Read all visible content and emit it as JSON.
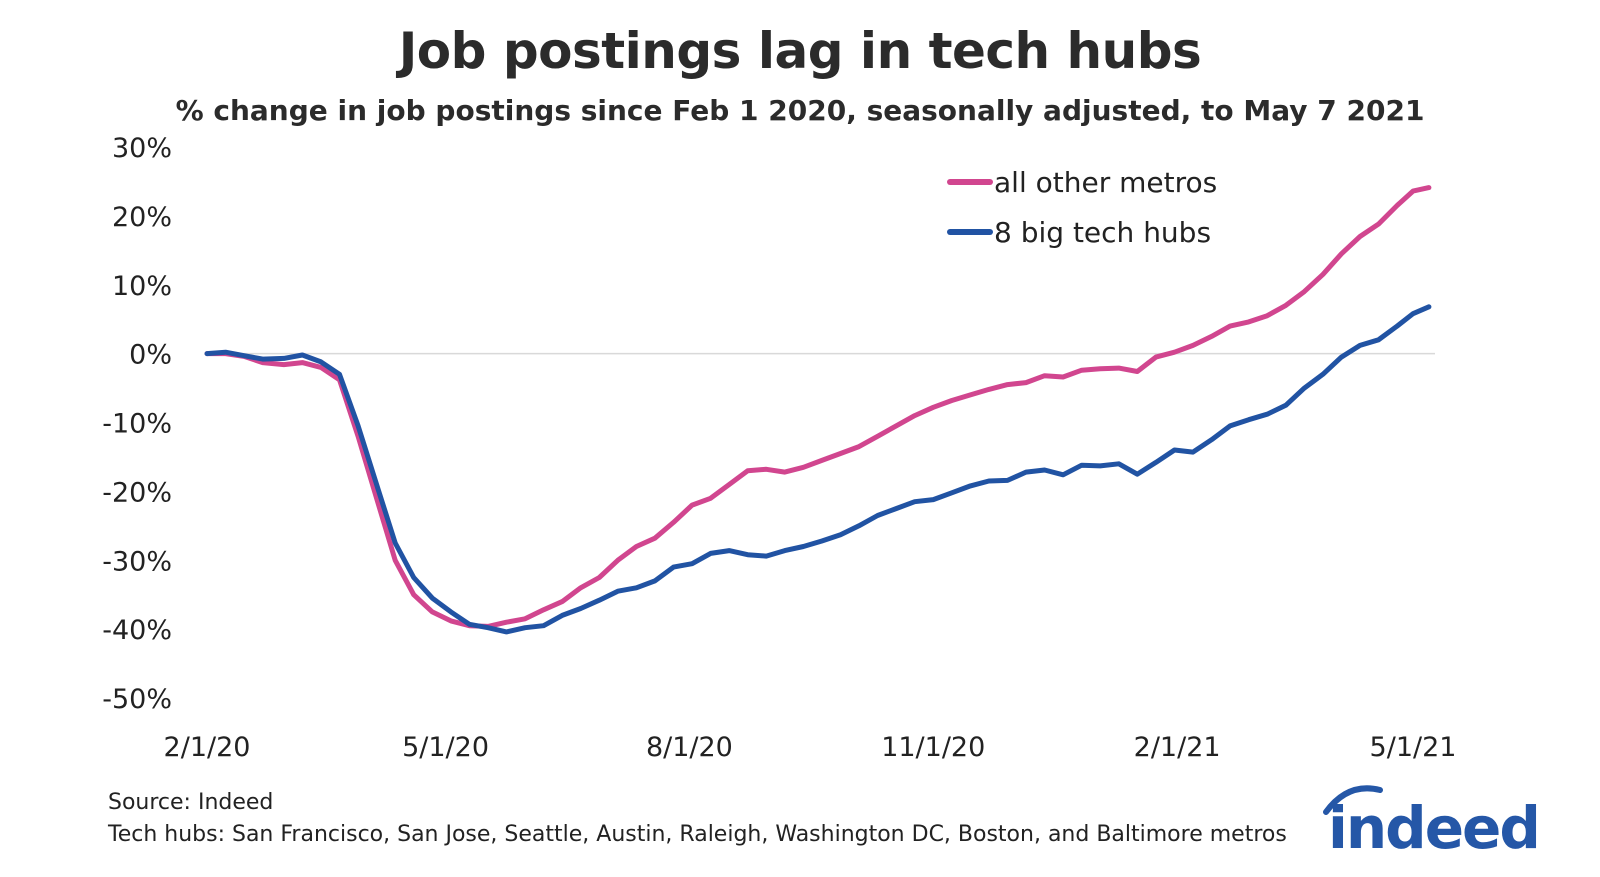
{
  "chart_data": {
    "type": "line",
    "title": "Job postings lag in tech hubs",
    "subtitle": "% change in job postings since Feb 1 2020, seasonally adjusted, to May 7 2021",
    "xlabel": "",
    "ylabel": "",
    "ylim": [
      -50,
      30
    ],
    "yticks": [
      30,
      20,
      10,
      0,
      -10,
      -20,
      -30,
      -40,
      -50
    ],
    "ytick_labels": [
      "30%",
      "20%",
      "10%",
      "0%",
      "-10%",
      "-20%",
      "-30%",
      "-40%",
      "-50%"
    ],
    "xlim": [
      "2020-02-01",
      "2021-05-07"
    ],
    "xticks": [
      "2020-02-01",
      "2020-05-01",
      "2020-08-01",
      "2020-11-01",
      "2021-02-01",
      "2021-05-01"
    ],
    "xtick_labels": [
      "2/1/20",
      "5/1/20",
      "8/1/20",
      "11/1/20",
      "2/1/21",
      "5/1/21"
    ],
    "grid": false,
    "zero_line": true,
    "legend_position": "top-right",
    "series": [
      {
        "name": "all other metros",
        "color": "#d1468f",
        "points": [
          [
            "2020-02-01",
            0.0
          ],
          [
            "2020-02-08",
            0.0
          ],
          [
            "2020-02-15",
            -0.4
          ],
          [
            "2020-02-22",
            -1.3
          ],
          [
            "2020-03-01",
            -1.6
          ],
          [
            "2020-03-08",
            -1.3
          ],
          [
            "2020-03-15",
            -2.0
          ],
          [
            "2020-03-22",
            -3.8
          ],
          [
            "2020-03-29",
            -12.0
          ],
          [
            "2020-04-05",
            -21.0
          ],
          [
            "2020-04-12",
            -30.0
          ],
          [
            "2020-04-19",
            -35.0
          ],
          [
            "2020-04-26",
            -37.5
          ],
          [
            "2020-05-03",
            -38.8
          ],
          [
            "2020-05-10",
            -39.5
          ],
          [
            "2020-05-17",
            -39.6
          ],
          [
            "2020-05-24",
            -39.0
          ],
          [
            "2020-05-31",
            -38.5
          ],
          [
            "2020-06-07",
            -37.2
          ],
          [
            "2020-06-14",
            -36.0
          ],
          [
            "2020-06-21",
            -34.0
          ],
          [
            "2020-06-28",
            -32.5
          ],
          [
            "2020-07-05",
            -30.0
          ],
          [
            "2020-07-12",
            -28.0
          ],
          [
            "2020-07-19",
            -26.8
          ],
          [
            "2020-07-26",
            -24.5
          ],
          [
            "2020-08-02",
            -22.0
          ],
          [
            "2020-08-09",
            -21.0
          ],
          [
            "2020-08-16",
            -19.0
          ],
          [
            "2020-08-23",
            -17.0
          ],
          [
            "2020-08-30",
            -16.8
          ],
          [
            "2020-09-06",
            -17.2
          ],
          [
            "2020-09-13",
            -16.5
          ],
          [
            "2020-09-20",
            -15.5
          ],
          [
            "2020-09-27",
            -14.5
          ],
          [
            "2020-10-04",
            -13.5
          ],
          [
            "2020-10-11",
            -12.0
          ],
          [
            "2020-10-18",
            -10.5
          ],
          [
            "2020-10-25",
            -9.0
          ],
          [
            "2020-11-01",
            -7.8
          ],
          [
            "2020-11-08",
            -6.8
          ],
          [
            "2020-11-15",
            -6.0
          ],
          [
            "2020-11-22",
            -5.2
          ],
          [
            "2020-11-29",
            -4.5
          ],
          [
            "2020-12-06",
            -4.2
          ],
          [
            "2020-12-13",
            -3.2
          ],
          [
            "2020-12-20",
            -3.4
          ],
          [
            "2020-12-27",
            -2.4
          ],
          [
            "2021-01-03",
            -2.2
          ],
          [
            "2021-01-10",
            -2.1
          ],
          [
            "2021-01-17",
            -2.6
          ],
          [
            "2021-01-24",
            -0.5
          ],
          [
            "2021-01-31",
            0.2
          ],
          [
            "2021-02-07",
            1.2
          ],
          [
            "2021-02-14",
            2.5
          ],
          [
            "2021-02-21",
            4.0
          ],
          [
            "2021-02-28",
            4.6
          ],
          [
            "2021-03-07",
            5.5
          ],
          [
            "2021-03-14",
            7.0
          ],
          [
            "2021-03-21",
            9.0
          ],
          [
            "2021-03-28",
            11.5
          ],
          [
            "2021-04-04",
            14.5
          ],
          [
            "2021-04-11",
            17.0
          ],
          [
            "2021-04-18",
            18.8
          ],
          [
            "2021-04-25",
            21.5
          ],
          [
            "2021-05-01",
            23.6
          ],
          [
            "2021-05-07",
            24.1
          ]
        ]
      },
      {
        "name": "8 big tech hubs",
        "color": "#2153a3",
        "points": [
          [
            "2020-02-01",
            0.0
          ],
          [
            "2020-02-08",
            0.2
          ],
          [
            "2020-02-15",
            -0.3
          ],
          [
            "2020-02-22",
            -0.8
          ],
          [
            "2020-03-01",
            -0.7
          ],
          [
            "2020-03-08",
            -0.2
          ],
          [
            "2020-03-15",
            -1.2
          ],
          [
            "2020-03-22",
            -3.0
          ],
          [
            "2020-03-29",
            -10.5
          ],
          [
            "2020-04-05",
            -19.0
          ],
          [
            "2020-04-12",
            -27.5
          ],
          [
            "2020-04-19",
            -32.5
          ],
          [
            "2020-04-26",
            -35.5
          ],
          [
            "2020-05-03",
            -37.5
          ],
          [
            "2020-05-10",
            -39.3
          ],
          [
            "2020-05-17",
            -39.8
          ],
          [
            "2020-05-24",
            -40.4
          ],
          [
            "2020-05-31",
            -39.8
          ],
          [
            "2020-06-07",
            -39.5
          ],
          [
            "2020-06-14",
            -38.0
          ],
          [
            "2020-06-21",
            -37.0
          ],
          [
            "2020-06-28",
            -35.8
          ],
          [
            "2020-07-05",
            -34.5
          ],
          [
            "2020-07-12",
            -34.0
          ],
          [
            "2020-07-19",
            -33.0
          ],
          [
            "2020-07-26",
            -31.0
          ],
          [
            "2020-08-02",
            -30.5
          ],
          [
            "2020-08-09",
            -29.0
          ],
          [
            "2020-08-16",
            -28.6
          ],
          [
            "2020-08-23",
            -29.2
          ],
          [
            "2020-08-30",
            -29.4
          ],
          [
            "2020-09-06",
            -28.6
          ],
          [
            "2020-09-13",
            -28.0
          ],
          [
            "2020-09-20",
            -27.2
          ],
          [
            "2020-09-27",
            -26.3
          ],
          [
            "2020-10-04",
            -25.0
          ],
          [
            "2020-10-11",
            -23.5
          ],
          [
            "2020-10-18",
            -22.5
          ],
          [
            "2020-10-25",
            -21.5
          ],
          [
            "2020-11-01",
            -21.2
          ],
          [
            "2020-11-08",
            -20.2
          ],
          [
            "2020-11-15",
            -19.2
          ],
          [
            "2020-11-22",
            -18.5
          ],
          [
            "2020-11-29",
            -18.4
          ],
          [
            "2020-12-06",
            -17.2
          ],
          [
            "2020-12-13",
            -16.9
          ],
          [
            "2020-12-20",
            -17.6
          ],
          [
            "2020-12-27",
            -16.2
          ],
          [
            "2021-01-03",
            -16.3
          ],
          [
            "2021-01-10",
            -16.0
          ],
          [
            "2021-01-17",
            -17.5
          ],
          [
            "2021-01-24",
            -15.8
          ],
          [
            "2021-01-31",
            -14.0
          ],
          [
            "2021-02-07",
            -14.3
          ],
          [
            "2021-02-14",
            -12.5
          ],
          [
            "2021-02-21",
            -10.5
          ],
          [
            "2021-02-28",
            -9.6
          ],
          [
            "2021-03-07",
            -8.8
          ],
          [
            "2021-03-14",
            -7.5
          ],
          [
            "2021-03-21",
            -5.0
          ],
          [
            "2021-03-28",
            -3.0
          ],
          [
            "2021-04-04",
            -0.5
          ],
          [
            "2021-04-11",
            1.2
          ],
          [
            "2021-04-18",
            2.0
          ],
          [
            "2021-04-25",
            4.0
          ],
          [
            "2021-05-01",
            5.8
          ],
          [
            "2021-05-07",
            6.8
          ]
        ]
      }
    ]
  },
  "footer": {
    "source": "Source: Indeed",
    "note": "Tech hubs: San Francisco, San Jose, Seattle, Austin, Raleigh, Washington DC, Boston, and Baltimore metros"
  },
  "logo": {
    "text": "indeed",
    "color": "#2557a7"
  }
}
